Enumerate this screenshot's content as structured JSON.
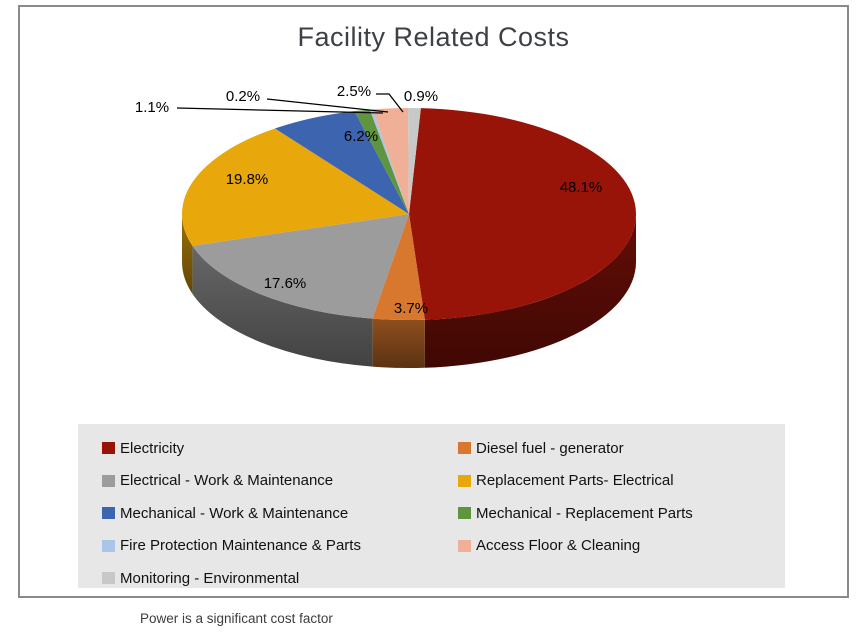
{
  "chart_data": {
    "type": "pie",
    "style": "3d",
    "title": "Facility Related Costs",
    "caption": "Power is a significant cost factor",
    "legend_position": "bottom",
    "legend_background": "#e7e7e7",
    "border_color": "#8a8a8a",
    "slices": [
      {
        "label": "Electricity",
        "value": 48.1,
        "color": "#981409"
      },
      {
        "label": "Diesel fuel - generator",
        "value": 3.7,
        "color": "#d8782e"
      },
      {
        "label": "Electrical - Work & Maintenance",
        "value": 17.6,
        "color": "#9c9c9c"
      },
      {
        "label": "Replacement Parts- Electrical",
        "value": 19.8,
        "color": "#e8a80b"
      },
      {
        "label": "Mechanical -  Work & Maintenance",
        "value": 6.2,
        "color": "#3d64ae"
      },
      {
        "label": "Mechanical - Replacement Parts",
        "value": 1.1,
        "color": "#60953f"
      },
      {
        "label": "Fire Protection Maintenance & Parts",
        "value": 0.2,
        "color": "#a9c6e8"
      },
      {
        "label": "Access Floor & Cleaning",
        "value": 2.5,
        "color": "#f0af97"
      },
      {
        "label": "Monitoring - Environmental",
        "value": 0.9,
        "color": "#c8c8c8"
      }
    ]
  }
}
